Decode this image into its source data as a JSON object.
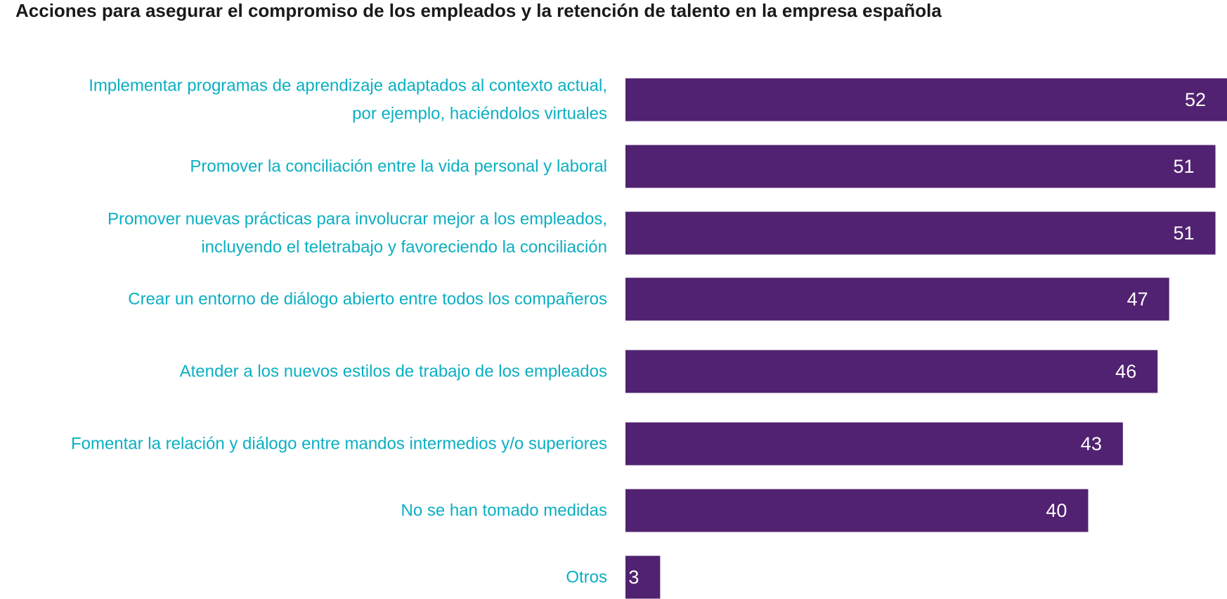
{
  "colors": {
    "bar": "#512271",
    "label": "#0bafc2",
    "value_text": "#ffffff",
    "title": "#1a1a1a"
  },
  "chart_data": {
    "type": "bar",
    "orientation": "horizontal",
    "title": "Acciones para asegurar el compromiso de los empleados y la retención de talento en la empresa española",
    "xlabel": "",
    "ylabel": "",
    "xlim": [
      0,
      52
    ],
    "grid": false,
    "legend": "none",
    "categories": [
      [
        "Implementar programas de aprendizaje adaptados al contexto actual,",
        "por ejemplo, haciéndolos virtuales"
      ],
      [
        "Promover la conciliación entre la vida personal y laboral"
      ],
      [
        "Promover nuevas prácticas para involucrar mejor a los empleados,",
        "incluyendo el teletrabajo y favoreciendo la conciliación"
      ],
      [
        "Crear un entorno de diálogo abierto entre todos los compañeros"
      ],
      [
        "Atender a los nuevos estilos de trabajo de los empleados"
      ],
      [
        "Fomentar la relación y diálogo entre mandos intermedios y/o superiores"
      ],
      [
        "No se han tomado medidas"
      ],
      [
        "Otros"
      ]
    ],
    "values": [
      52,
      51,
      51,
      47,
      46,
      43,
      40,
      3
    ]
  }
}
